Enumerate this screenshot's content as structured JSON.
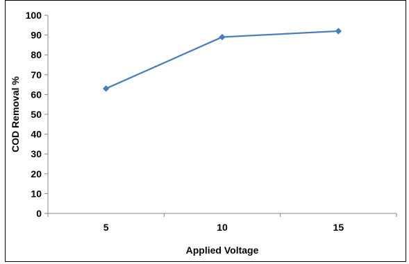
{
  "chart_data": {
    "type": "line",
    "title": "",
    "xlabel": "Applied Voltage",
    "ylabel": "COD Removal %",
    "categories": [
      "5",
      "10",
      "15"
    ],
    "x": [
      5,
      10,
      15
    ],
    "series": [
      {
        "values": [
          63,
          89,
          92
        ],
        "color": "#4a7ebb",
        "marker": "diamond"
      }
    ],
    "ylim": [
      0,
      100
    ],
    "yticks": [
      0,
      10,
      20,
      30,
      40,
      50,
      60,
      70,
      80,
      90,
      100
    ],
    "grid": false,
    "legend": "none"
  }
}
